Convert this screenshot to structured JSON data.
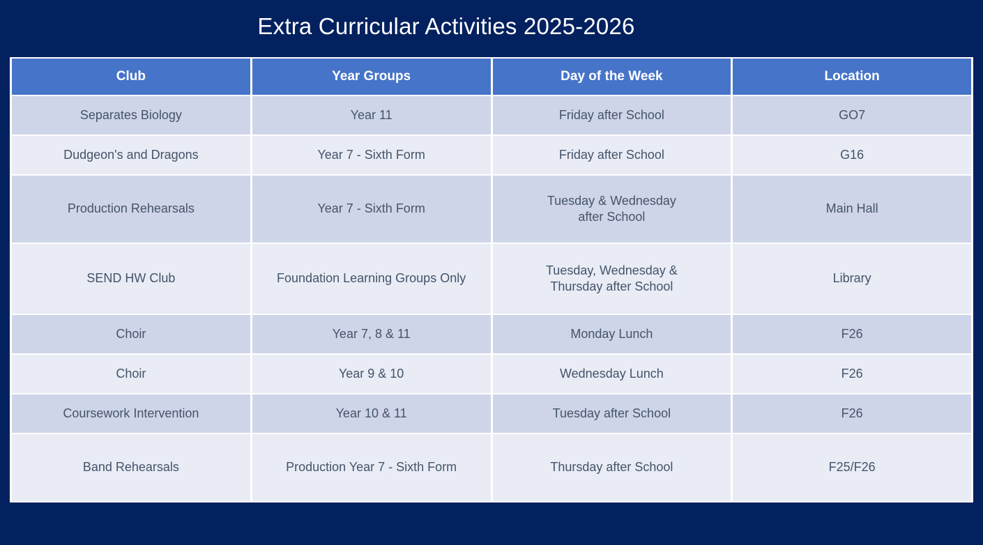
{
  "page": {
    "title": "Extra Curricular Activities 2025-2026"
  },
  "colors": {
    "background": "#04215f",
    "header_bg": "#4674c8",
    "row_dark": "#cfd5e9",
    "row_light": "#e9ecf5",
    "cell_text": "#44546a",
    "header_text": "#ffffff",
    "border": "#ffffff"
  },
  "table": {
    "columns": [
      "Club",
      "Year Groups",
      "Day of the Week",
      "Location"
    ],
    "rows": [
      [
        "Separates Biology",
        "Year 11",
        "Friday after School",
        "GO7"
      ],
      [
        "Dudgeon's and Dragons",
        "Year 7 - Sixth Form",
        "Friday after School",
        "G16"
      ],
      [
        "Production Rehearsals",
        "Year 7 - Sixth Form",
        "Tuesday & Wednesday\nafter School",
        "Main Hall"
      ],
      [
        "SEND HW Club",
        "Foundation Learning Groups Only",
        "Tuesday, Wednesday &\nThursday after School",
        "Library"
      ],
      [
        "Choir",
        "Year 7, 8 & 11",
        "Monday Lunch",
        "F26"
      ],
      [
        "Choir",
        "Year 9 & 10",
        "Wednesday Lunch",
        "F26"
      ],
      [
        "Coursework Intervention",
        "Year 10 & 11",
        "Tuesday after School",
        "F26"
      ],
      [
        "Band Rehearsals",
        "Production Year 7 - Sixth Form",
        "Thursday after School",
        "F25/F26"
      ]
    ]
  }
}
